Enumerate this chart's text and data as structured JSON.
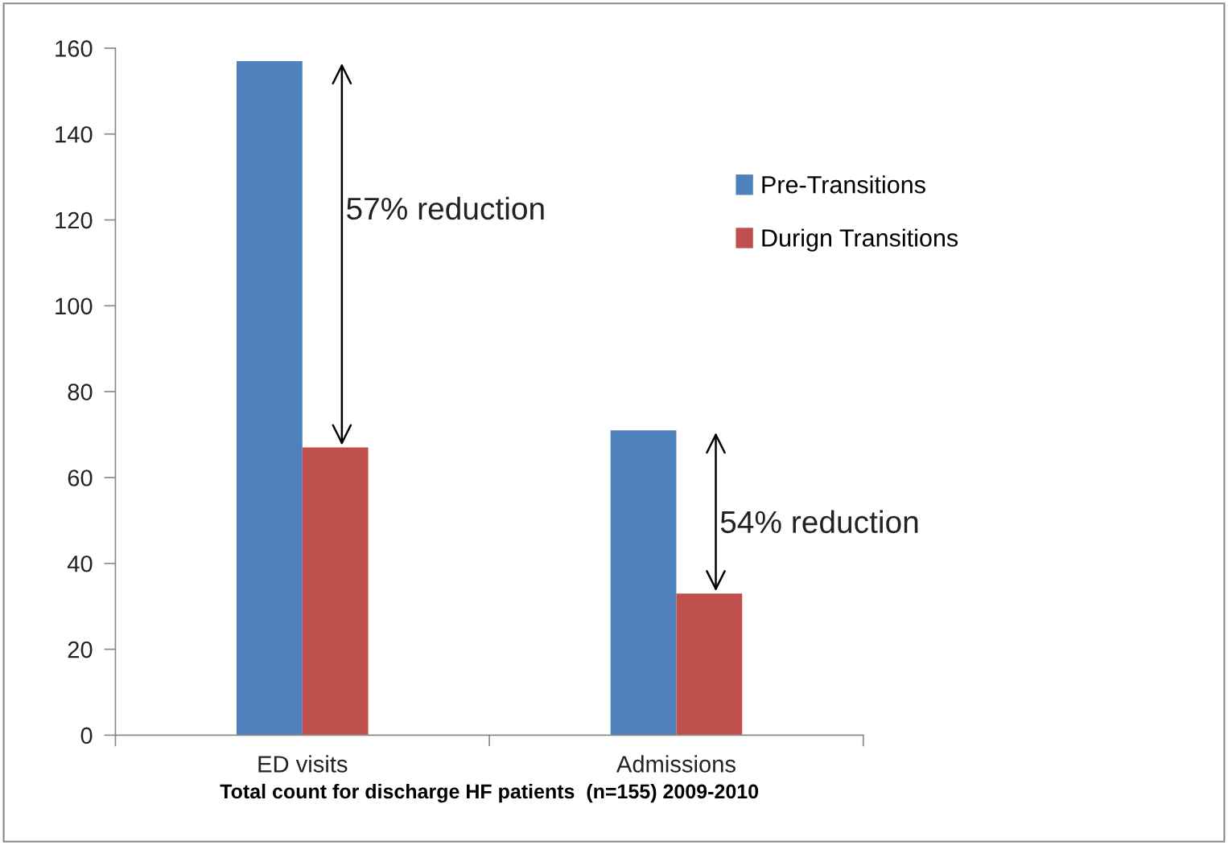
{
  "chart_data": {
    "type": "bar",
    "categories": [
      "ED visits",
      "Admissions"
    ],
    "series": [
      {
        "name": "Pre-Transitions",
        "color": "#4f81bd",
        "values": [
          157,
          71
        ]
      },
      {
        "name": "Durign Transitions",
        "color": "#c0504d",
        "values": [
          67,
          33
        ]
      }
    ],
    "xlabel": "Total count for discharge HF patients  (n=155) 2009-2010",
    "annotations": [
      "57% reduction",
      "54% reduction"
    ],
    "ylim": [
      0,
      160
    ],
    "yticks": [
      0,
      20,
      40,
      60,
      80,
      100,
      120,
      140,
      160
    ],
    "grid": false,
    "legend": "right"
  }
}
